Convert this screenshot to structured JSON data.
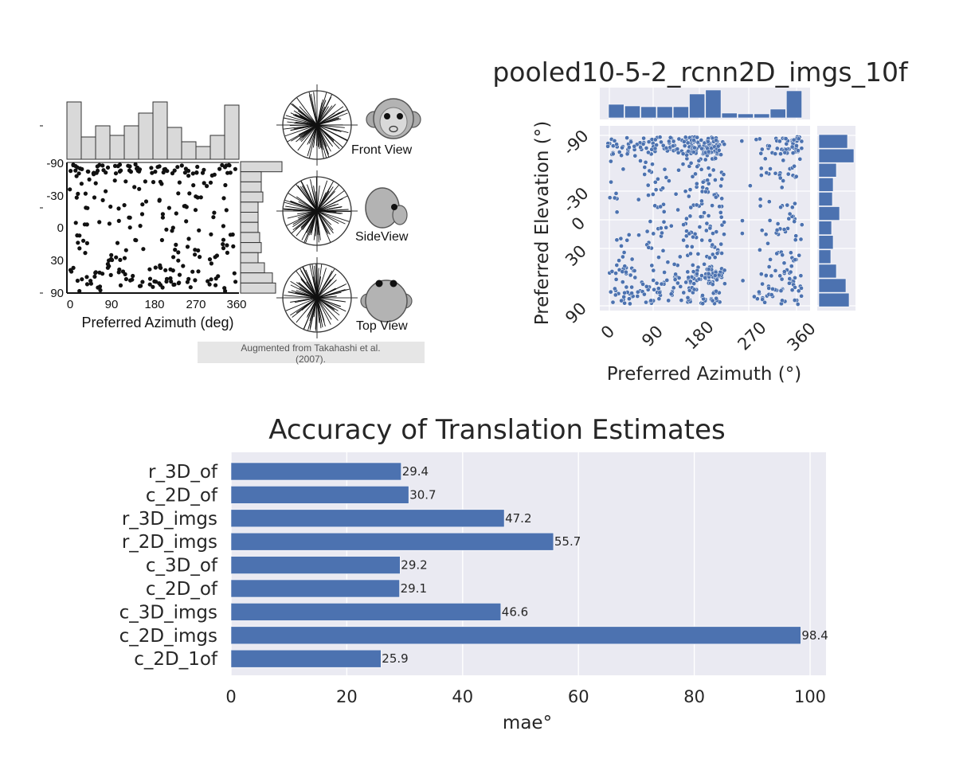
{
  "colors": {
    "blue": "#4c72b0",
    "panel_bg": "#eaeaf2",
    "hist_gray": "#d9d9d9",
    "black": "#111111",
    "caption_bg": "#e6e6e6"
  },
  "left_panel": {
    "xlabel": "Preferred Azimuth (deg)",
    "x_ticks": [
      "0",
      "90",
      "180",
      "270",
      "360"
    ],
    "y_ticks": [
      "-90",
      "-30",
      "0",
      "30",
      "90"
    ],
    "views": [
      "Front View",
      "SideView",
      "Top View"
    ],
    "caption": "Augmented from Takahashi et al. (2007)."
  },
  "right_panel": {
    "title": "pooled10-5-2_rcnn2D_imgs_10f",
    "xlabel": "Preferred Azimuth (°)",
    "ylabel": "Preferred Elevation (°)",
    "x_ticks": [
      "0",
      "90",
      "180",
      "270",
      "360"
    ],
    "y_ticks": [
      "-90",
      "-30",
      "0",
      "30",
      "90"
    ]
  },
  "chart_data": {
    "type": "bar",
    "orientation": "horizontal",
    "title": "Accuracy of Translation Estimates",
    "xlabel": "mae°",
    "ylabel": "",
    "xlim": [
      0,
      103
    ],
    "x_ticks": [
      "0",
      "20",
      "40",
      "60",
      "80",
      "100"
    ],
    "categories": [
      "r_3D_of",
      "c_2D_of",
      "r_3D_imgs",
      "r_2D_imgs",
      "c_3D_of",
      "c_2D_of",
      "c_3D_imgs",
      "c_2D_imgs",
      "c_2D_1of"
    ],
    "values": [
      29.4,
      30.7,
      47.2,
      55.7,
      29.2,
      29.1,
      46.6,
      98.4,
      25.9
    ],
    "value_labels": [
      "29.4",
      "30.7",
      "47.2",
      "55.7",
      "29.2",
      "29.1",
      "46.6",
      "98.4",
      "25.9"
    ],
    "grid": true
  }
}
